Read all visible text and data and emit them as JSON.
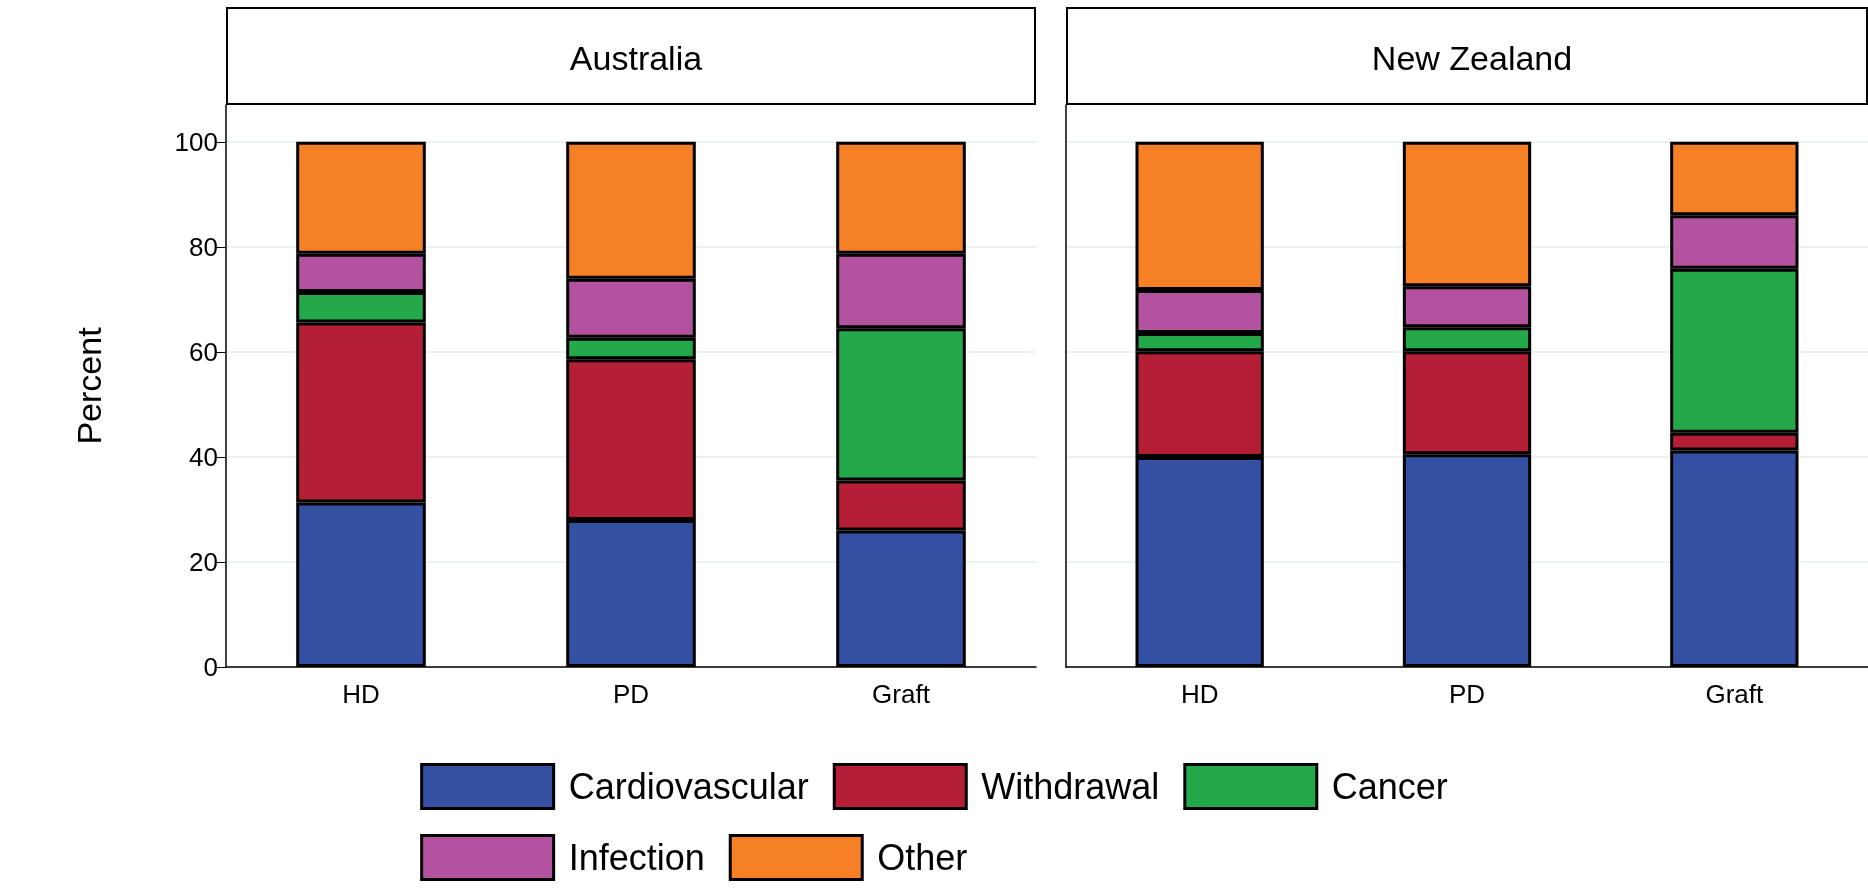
{
  "chart_data": [
    {
      "type": "bar",
      "stacked": true,
      "title": "Australia",
      "ylabel": "Percent",
      "categories": [
        "HD",
        "PD",
        "Graft"
      ],
      "ylim": [
        0,
        107
      ],
      "yticks": [
        0,
        20,
        40,
        60,
        80,
        100
      ],
      "grid": "y",
      "legend": "bottom",
      "series": [
        {
          "name": "Cardiovascular",
          "color": "#3450a3",
          "values": [
            31.3,
            28.0,
            26.0
          ]
        },
        {
          "name": "Withdrawal",
          "color": "#b51f35",
          "values": [
            34.3,
            30.6,
            9.5
          ]
        },
        {
          "name": "Cancer",
          "color": "#23a84a",
          "values": [
            5.8,
            4.1,
            29.0
          ]
        },
        {
          "name": "Infection",
          "color": "#b3529e",
          "values": [
            7.3,
            11.2,
            14.2
          ]
        },
        {
          "name": "Other",
          "color": "#f58025",
          "values": [
            21.3,
            26.1,
            21.3
          ]
        }
      ]
    },
    {
      "type": "bar",
      "stacked": true,
      "title": "New Zealand",
      "categories": [
        "HD",
        "PD",
        "Graft"
      ],
      "ylim": [
        0,
        107
      ],
      "yticks": [
        0,
        20,
        40,
        60,
        80,
        100
      ],
      "grid": "y",
      "tick_labels": "x",
      "series": [
        {
          "color": "#3450a3",
          "values": [
            40.0,
            40.5,
            41.2
          ]
        },
        {
          "color": "#b51f35",
          "values": [
            20.1,
            19.6,
            3.4
          ]
        },
        {
          "color": "#23a84a",
          "values": [
            3.5,
            4.6,
            31.2
          ]
        },
        {
          "color": "#b3529e",
          "values": [
            8.2,
            7.8,
            10.2
          ]
        },
        {
          "color": "#f58025",
          "values": [
            28.2,
            27.5,
            14.0
          ]
        }
      ]
    }
  ]
}
